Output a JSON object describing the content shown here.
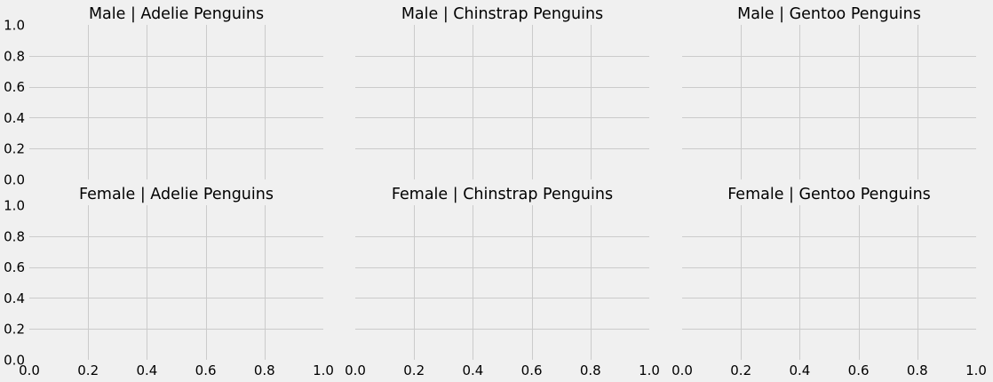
{
  "chart_data": {
    "type": "grid",
    "rows": 2,
    "cols": 3,
    "grid": true,
    "background": "#f0f0f0",
    "grid_color": "#cbcbcb",
    "xlim": [
      0.0,
      1.0
    ],
    "ylim": [
      0.0,
      1.0
    ],
    "xticks": [
      "0.0",
      "0.2",
      "0.4",
      "0.6",
      "0.8",
      "1.0"
    ],
    "yticks": [
      "0.0",
      "0.2",
      "0.4",
      "0.6",
      "0.8",
      "1.0"
    ],
    "panels": [
      {
        "title": "Male | Adelie Penguins"
      },
      {
        "title": "Male | Chinstrap Penguins"
      },
      {
        "title": "Male | Gentoo Penguins"
      },
      {
        "title": "Female | Adelie Penguins"
      },
      {
        "title": "Female | Chinstrap Penguins"
      },
      {
        "title": "Female | Gentoo Penguins"
      }
    ]
  }
}
